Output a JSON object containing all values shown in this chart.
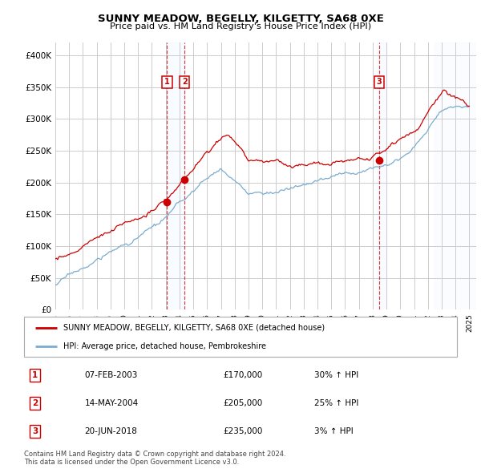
{
  "title": "SUNNY MEADOW, BEGELLY, KILGETTY, SA68 0XE",
  "subtitle": "Price paid vs. HM Land Registry's House Price Index (HPI)",
  "legend_line1": "SUNNY MEADOW, BEGELLY, KILGETTY, SA68 0XE (detached house)",
  "legend_line2": "HPI: Average price, detached house, Pembrokeshire",
  "footnote1": "Contains HM Land Registry data © Crown copyright and database right 2024.",
  "footnote2": "This data is licensed under the Open Government Licence v3.0.",
  "sales": [
    {
      "label": "1",
      "date": "07-FEB-2003",
      "price": 170000,
      "hpi_pct": "30% ↑ HPI",
      "x": 2003.1
    },
    {
      "label": "2",
      "date": "14-MAY-2004",
      "price": 205000,
      "hpi_pct": "25% ↑ HPI",
      "x": 2004.37
    },
    {
      "label": "3",
      "date": "20-JUN-2018",
      "price": 235000,
      "hpi_pct": "3% ↑ HPI",
      "x": 2018.46
    }
  ],
  "red_color": "#cc0000",
  "blue_color": "#7aadcf",
  "shade_color": "#ddeeff",
  "background_color": "#ffffff",
  "grid_color": "#cccccc",
  "ylim": [
    0,
    420000
  ],
  "xlim": [
    1995.0,
    2025.5
  ],
  "yticks": [
    0,
    50000,
    100000,
    150000,
    200000,
    250000,
    300000,
    350000,
    400000
  ],
  "ytick_labels": [
    "£0",
    "£50K",
    "£100K",
    "£150K",
    "£200K",
    "£250K",
    "£300K",
    "£350K",
    "£400K"
  ],
  "xticks": [
    1995,
    1996,
    1997,
    1998,
    1999,
    2000,
    2001,
    2002,
    2003,
    2004,
    2005,
    2006,
    2007,
    2008,
    2009,
    2010,
    2011,
    2012,
    2013,
    2014,
    2015,
    2016,
    2017,
    2018,
    2019,
    2020,
    2021,
    2022,
    2023,
    2024,
    2025
  ]
}
